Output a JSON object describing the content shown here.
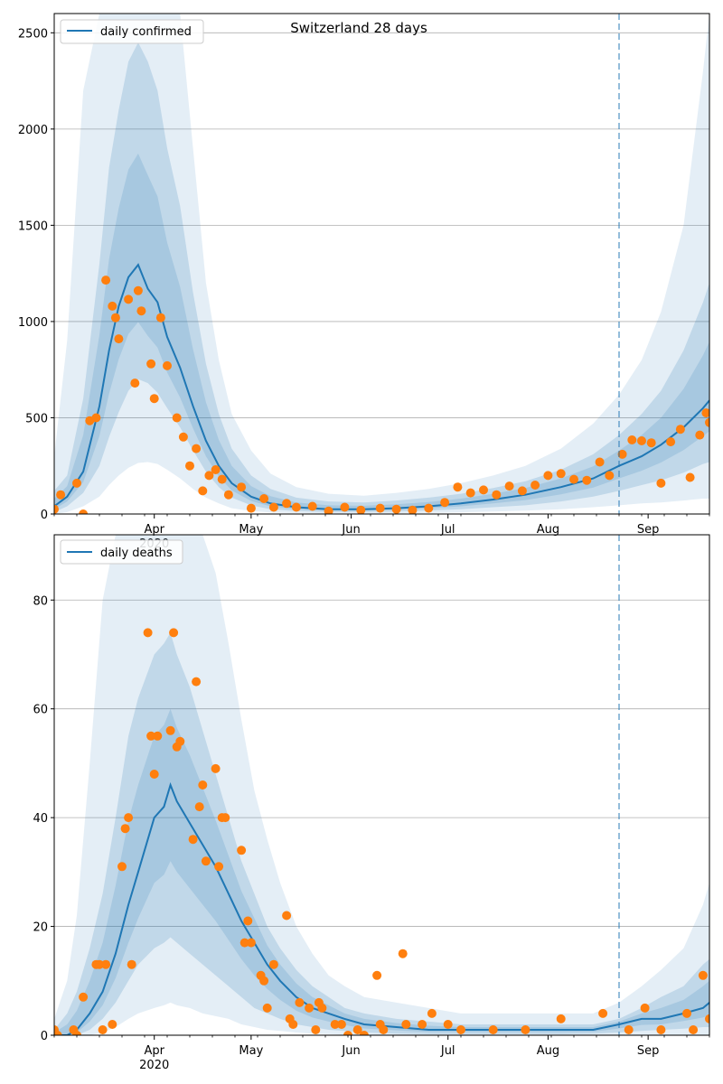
{
  "chart_data": [
    {
      "type": "line",
      "title": "Switzerland 28 days",
      "xlabel": "",
      "ylabel": "",
      "x_range": [
        "2020-03-01",
        "2020-09-20"
      ],
      "ylim": [
        0,
        2600
      ],
      "yticks": [
        0,
        500,
        1000,
        1500,
        2000,
        2500
      ],
      "xticks": [
        {
          "date": "2020-04-01",
          "label": "Apr",
          "sublabel": "2020"
        },
        {
          "date": "2020-05-01",
          "label": "May",
          "sublabel": ""
        },
        {
          "date": "2020-06-01",
          "label": "Jun",
          "sublabel": ""
        },
        {
          "date": "2020-07-01",
          "label": "Jul",
          "sublabel": ""
        },
        {
          "date": "2020-08-01",
          "label": "Aug",
          "sublabel": ""
        },
        {
          "date": "2020-09-01",
          "label": "Sep",
          "sublabel": ""
        }
      ],
      "grid": "horizontal",
      "legend_position": "top-left",
      "forecast_start": "2020-08-23",
      "colors": {
        "line": "#1f77b4",
        "band": "#1f77b4",
        "points": "#ff7f0e"
      },
      "series": [
        {
          "name": "daily confirmed",
          "kind": "line",
          "x": [
            "2020-03-01",
            "2020-03-05",
            "2020-03-10",
            "2020-03-15",
            "2020-03-18",
            "2020-03-21",
            "2020-03-24",
            "2020-03-27",
            "2020-03-30",
            "2020-04-02",
            "2020-04-05",
            "2020-04-09",
            "2020-04-13",
            "2020-04-17",
            "2020-04-21",
            "2020-04-25",
            "2020-05-01",
            "2020-05-07",
            "2020-05-15",
            "2020-05-25",
            "2020-06-05",
            "2020-06-15",
            "2020-06-25",
            "2020-07-05",
            "2020-07-15",
            "2020-07-25",
            "2020-08-05",
            "2020-08-15",
            "2020-08-23",
            "2020-08-30",
            "2020-09-05",
            "2020-09-12",
            "2020-09-18",
            "2020-09-20"
          ],
          "y": [
            40,
            90,
            220,
            560,
            850,
            1080,
            1230,
            1295,
            1170,
            1100,
            920,
            760,
            560,
            380,
            250,
            160,
            90,
            55,
            35,
            25,
            25,
            30,
            40,
            55,
            75,
            100,
            140,
            185,
            250,
            300,
            360,
            450,
            550,
            590
          ],
          "band_upper_outer": [
            300,
            900,
            2200,
            2600,
            2600,
            2600,
            2600,
            2600,
            2600,
            2600,
            2600,
            2600,
            1900,
            1200,
            800,
            520,
            330,
            210,
            140,
            105,
            95,
            110,
            130,
            160,
            200,
            250,
            340,
            470,
            620,
            800,
            1050,
            1500,
            2300,
            2600
          ],
          "band_upper_inner": [
            120,
            200,
            600,
            1300,
            1800,
            2100,
            2350,
            2450,
            2350,
            2200,
            1900,
            1600,
            1150,
            780,
            520,
            340,
            200,
            130,
            85,
            65,
            60,
            70,
            85,
            105,
            135,
            170,
            230,
            310,
            410,
            520,
            640,
            850,
            1100,
            1200
          ],
          "band_lower_inner": [
            10,
            40,
            110,
            250,
            400,
            530,
            640,
            700,
            680,
            630,
            550,
            450,
            330,
            220,
            140,
            85,
            45,
            25,
            15,
            10,
            10,
            12,
            18,
            25,
            35,
            45,
            65,
            90,
            120,
            150,
            175,
            215,
            260,
            270
          ],
          "band_lower_outer": [
            0,
            10,
            40,
            90,
            150,
            200,
            240,
            265,
            270,
            260,
            230,
            185,
            130,
            85,
            55,
            30,
            15,
            8,
            5,
            3,
            3,
            4,
            6,
            9,
            13,
            18,
            25,
            35,
            45,
            55,
            60,
            70,
            80,
            80
          ]
        },
        {
          "name": "",
          "kind": "scatter",
          "x": [
            "2020-03-01",
            "2020-03-03",
            "2020-03-08",
            "2020-03-10",
            "2020-03-12",
            "2020-03-14",
            "2020-03-17",
            "2020-03-19",
            "2020-03-20",
            "2020-03-21",
            "2020-03-24",
            "2020-03-26",
            "2020-03-27",
            "2020-03-28",
            "2020-03-31",
            "2020-04-01",
            "2020-04-03",
            "2020-04-05",
            "2020-04-08",
            "2020-04-10",
            "2020-04-12",
            "2020-04-14",
            "2020-04-16",
            "2020-04-18",
            "2020-04-20",
            "2020-04-22",
            "2020-04-24",
            "2020-04-28",
            "2020-05-01",
            "2020-05-05",
            "2020-05-08",
            "2020-05-12",
            "2020-05-15",
            "2020-05-20",
            "2020-05-25",
            "2020-05-30",
            "2020-06-04",
            "2020-06-10",
            "2020-06-15",
            "2020-06-20",
            "2020-06-25",
            "2020-06-30",
            "2020-07-04",
            "2020-07-08",
            "2020-07-12",
            "2020-07-16",
            "2020-07-20",
            "2020-07-24",
            "2020-07-28",
            "2020-08-01",
            "2020-08-05",
            "2020-08-09",
            "2020-08-13",
            "2020-08-17",
            "2020-08-20",
            "2020-08-24",
            "2020-08-27",
            "2020-08-30",
            "2020-09-02",
            "2020-09-05",
            "2020-09-08",
            "2020-09-11",
            "2020-09-14",
            "2020-09-17",
            "2020-09-19",
            "2020-09-20"
          ],
          "y": [
            25,
            100,
            160,
            0,
            485,
            500,
            1215,
            1080,
            1020,
            910,
            1115,
            680,
            1160,
            1055,
            780,
            600,
            1020,
            770,
            500,
            400,
            250,
            340,
            120,
            200,
            230,
            180,
            100,
            140,
            30,
            80,
            35,
            55,
            35,
            40,
            15,
            35,
            20,
            30,
            25,
            20,
            30,
            60,
            140,
            110,
            125,
            100,
            145,
            120,
            150,
            200,
            210,
            180,
            175,
            270,
            200,
            310,
            385,
            380,
            370,
            160,
            375,
            440,
            190,
            410,
            525,
            475
          ],
          "size": 5
        }
      ]
    },
    {
      "type": "line",
      "title": "",
      "xlabel": "",
      "ylabel": "",
      "x_range": [
        "2020-03-01",
        "2020-09-20"
      ],
      "ylim": [
        0,
        92
      ],
      "yticks": [
        0,
        20,
        40,
        60,
        80
      ],
      "xticks": [
        {
          "date": "2020-04-01",
          "label": "Apr",
          "sublabel": "2020"
        },
        {
          "date": "2020-05-01",
          "label": "May",
          "sublabel": ""
        },
        {
          "date": "2020-06-01",
          "label": "Jun",
          "sublabel": ""
        },
        {
          "date": "2020-07-01",
          "label": "Jul",
          "sublabel": ""
        },
        {
          "date": "2020-08-01",
          "label": "Aug",
          "sublabel": ""
        },
        {
          "date": "2020-09-01",
          "label": "Sep",
          "sublabel": ""
        }
      ],
      "grid": "horizontal",
      "legend_position": "top-left",
      "forecast_start": "2020-08-23",
      "colors": {
        "line": "#1f77b4",
        "band": "#1f77b4",
        "points": "#ff7f0e"
      },
      "series": [
        {
          "name": "daily deaths",
          "kind": "line",
          "x": [
            "2020-03-01",
            "2020-03-05",
            "2020-03-08",
            "2020-03-12",
            "2020-03-16",
            "2020-03-20",
            "2020-03-24",
            "2020-03-27",
            "2020-04-01",
            "2020-04-04",
            "2020-04-06",
            "2020-04-08",
            "2020-04-12",
            "2020-04-16",
            "2020-04-20",
            "2020-04-24",
            "2020-04-28",
            "2020-05-02",
            "2020-05-06",
            "2020-05-10",
            "2020-05-15",
            "2020-05-20",
            "2020-05-25",
            "2020-05-30",
            "2020-06-05",
            "2020-06-15",
            "2020-06-25",
            "2020-07-05",
            "2020-07-15",
            "2020-07-25",
            "2020-08-05",
            "2020-08-15",
            "2020-08-23",
            "2020-08-30",
            "2020-09-05",
            "2020-09-12",
            "2020-09-18",
            "2020-09-20"
          ],
          "y": [
            0,
            0,
            1,
            4,
            8,
            15,
            24,
            30,
            40,
            42,
            46,
            43,
            39,
            35,
            31,
            26,
            21,
            17,
            13,
            10,
            7,
            5,
            4,
            3,
            2,
            1.5,
            1,
            1,
            1,
            1,
            1,
            1,
            2,
            3,
            3,
            4,
            5,
            6
          ],
          "band_upper_outer": [
            3,
            10,
            22,
            50,
            80,
            92,
            92,
            92,
            92,
            92,
            92,
            92,
            92,
            92,
            85,
            72,
            58,
            45,
            36,
            28,
            20,
            15,
            11,
            9,
            7,
            6,
            5,
            4,
            4,
            4,
            4,
            4,
            6,
            9,
            12,
            16,
            24,
            28
          ],
          "band_upper_inner": [
            1,
            4,
            8,
            16,
            26,
            40,
            55,
            62,
            70,
            72,
            74,
            70,
            64,
            56,
            48,
            40,
            32,
            26,
            20,
            16,
            12,
            9,
            7,
            5,
            4,
            3,
            2.5,
            2,
            2,
            2,
            2,
            2,
            3,
            5,
            7,
            9,
            13,
            14
          ],
          "band_lower_inner": [
            0,
            0,
            0,
            1,
            3,
            6,
            10,
            13,
            16,
            17,
            18,
            17,
            15,
            13,
            11,
            9,
            7,
            5,
            4,
            3,
            2,
            1.5,
            1,
            0.8,
            0.5,
            0.3,
            0.2,
            0.2,
            0.2,
            0.2,
            0.2,
            0.3,
            0.5,
            0.8,
            1,
            1.2,
            1.5,
            1.5
          ],
          "band_lower_outer": [
            0,
            0,
            0,
            0,
            0.5,
            1.5,
            3,
            4,
            5,
            5.5,
            6,
            5.5,
            5,
            4,
            3.5,
            3,
            2,
            1.5,
            1,
            0.8,
            0.5,
            0.3,
            0.2,
            0.1,
            0,
            0,
            0,
            0,
            0,
            0,
            0,
            0,
            0,
            0,
            0,
            0,
            0,
            0
          ]
        },
        {
          "name": "",
          "kind": "scatter",
          "x": [
            "2020-03-01",
            "2020-03-02",
            "2020-03-07",
            "2020-03-08",
            "2020-03-10",
            "2020-03-14",
            "2020-03-15",
            "2020-03-16",
            "2020-03-17",
            "2020-03-19",
            "2020-03-22",
            "2020-03-23",
            "2020-03-24",
            "2020-03-25",
            "2020-03-30",
            "2020-03-31",
            "2020-04-01",
            "2020-04-02",
            "2020-04-06",
            "2020-04-07",
            "2020-04-08",
            "2020-04-09",
            "2020-04-13",
            "2020-04-14",
            "2020-04-15",
            "2020-04-16",
            "2020-04-17",
            "2020-04-20",
            "2020-04-21",
            "2020-04-22",
            "2020-04-23",
            "2020-04-28",
            "2020-04-29",
            "2020-04-30",
            "2020-05-01",
            "2020-05-04",
            "2020-05-05",
            "2020-05-06",
            "2020-05-08",
            "2020-05-12",
            "2020-05-13",
            "2020-05-14",
            "2020-05-16",
            "2020-05-19",
            "2020-05-21",
            "2020-05-22",
            "2020-05-23",
            "2020-05-27",
            "2020-05-29",
            "2020-05-31",
            "2020-06-03",
            "2020-06-05",
            "2020-06-09",
            "2020-06-10",
            "2020-06-11",
            "2020-06-17",
            "2020-06-18",
            "2020-06-23",
            "2020-06-26",
            "2020-07-01",
            "2020-07-05",
            "2020-07-15",
            "2020-07-25",
            "2020-08-05",
            "2020-08-18",
            "2020-08-26",
            "2020-08-31",
            "2020-09-05",
            "2020-09-13",
            "2020-09-15",
            "2020-09-18",
            "2020-09-20"
          ],
          "y": [
            1,
            0,
            1,
            0,
            7,
            13,
            13,
            1,
            13,
            2,
            31,
            38,
            40,
            13,
            74,
            55,
            48,
            55,
            56,
            74,
            53,
            54,
            36,
            65,
            42,
            46,
            32,
            49,
            31,
            40,
            40,
            34,
            17,
            21,
            17,
            11,
            10,
            5,
            13,
            22,
            3,
            2,
            6,
            5,
            1,
            6,
            5,
            2,
            2,
            0,
            1,
            0,
            11,
            2,
            1,
            15,
            2,
            2,
            4,
            2,
            1,
            1,
            1,
            3,
            4,
            1,
            5,
            1,
            4,
            1,
            11,
            3
          ],
          "size": 5
        }
      ]
    }
  ],
  "legends": {
    "top": "daily confirmed",
    "bottom": "daily deaths"
  }
}
